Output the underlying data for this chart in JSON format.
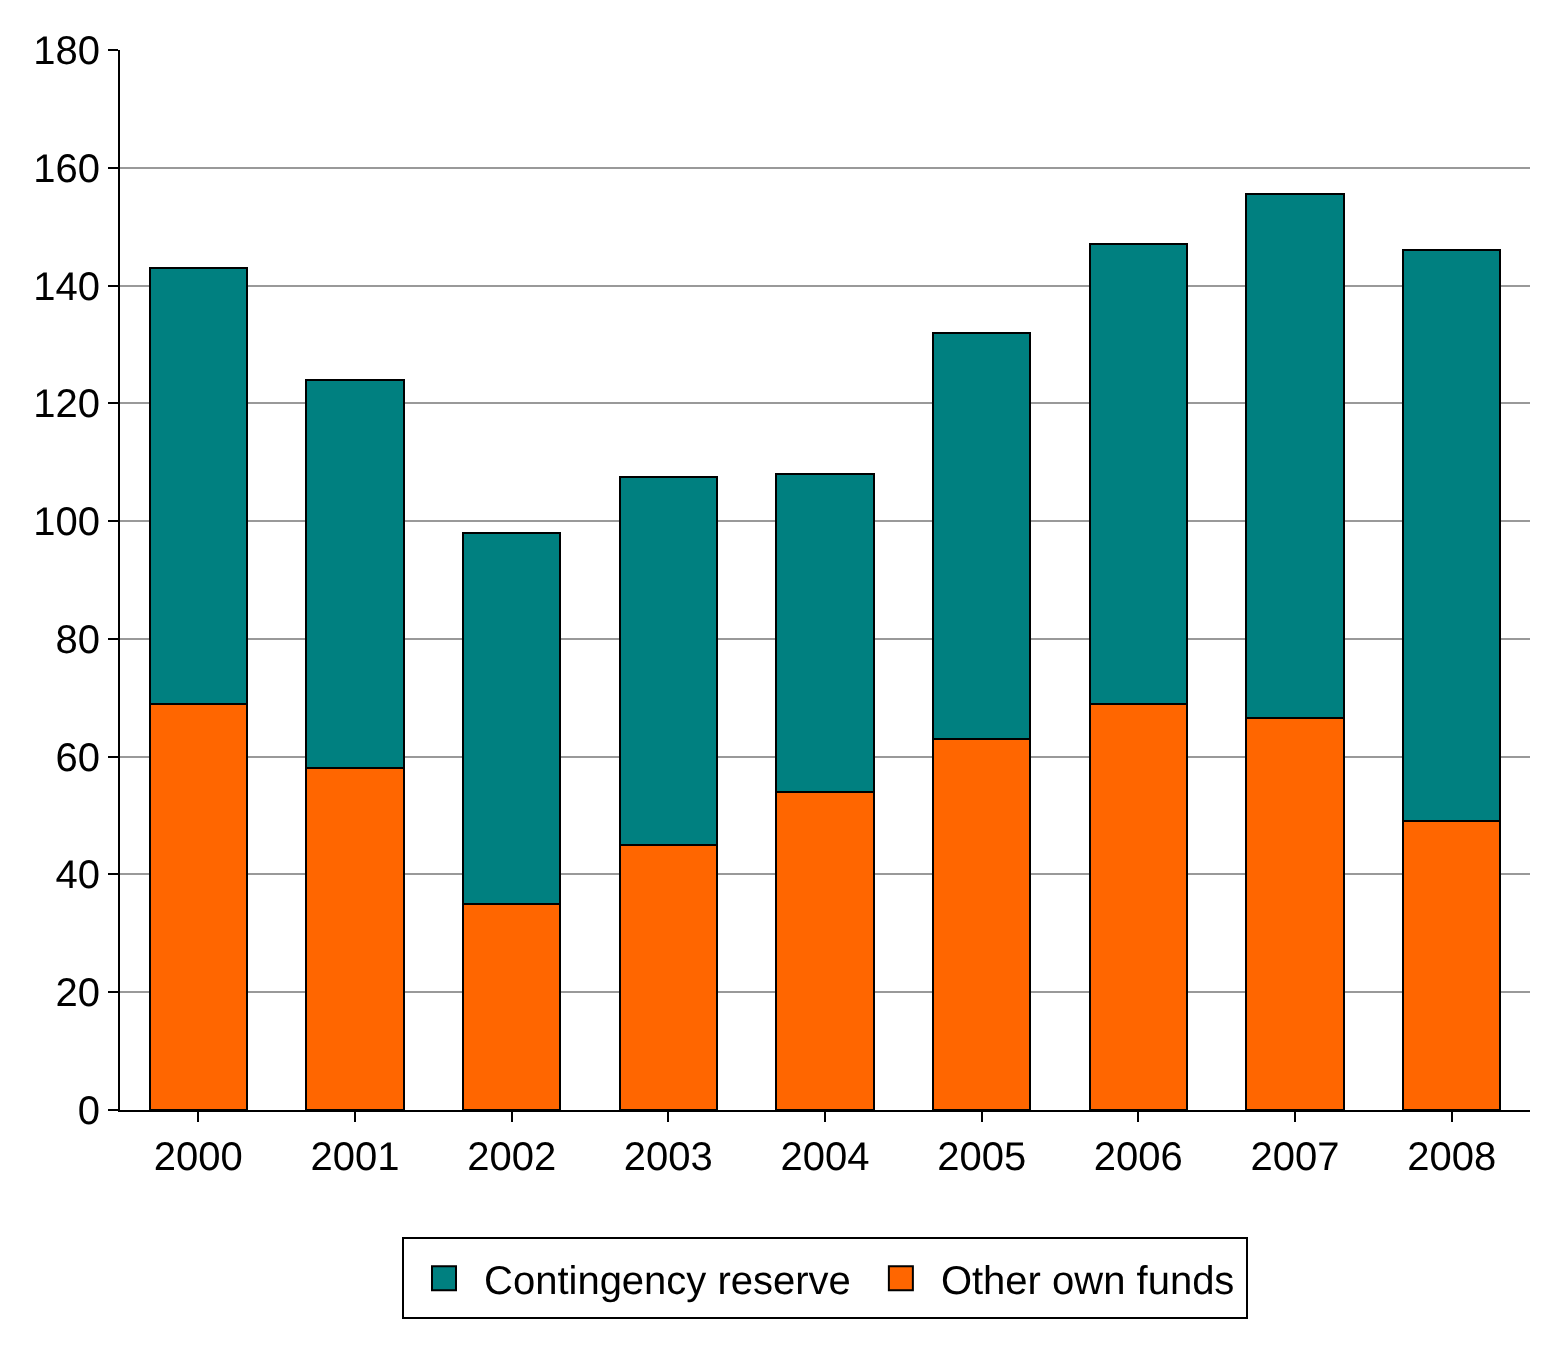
{
  "chart_data": {
    "type": "bar",
    "stacked": true,
    "categories": [
      "2000",
      "2001",
      "2002",
      "2003",
      "2004",
      "2005",
      "2006",
      "2007",
      "2008"
    ],
    "series": [
      {
        "name": "Other own funds",
        "color": "#ff6600",
        "values": [
          69,
          58,
          35,
          45,
          54,
          63,
          69,
          66.5,
          49
        ]
      },
      {
        "name": "Contingency reserve",
        "color": "#008080",
        "values": [
          74,
          66,
          63,
          62.5,
          54,
          69,
          78,
          89,
          97
        ]
      }
    ],
    "ylim": [
      0,
      180
    ],
    "yticks": [
      0,
      20,
      40,
      60,
      80,
      100,
      120,
      140,
      160,
      180
    ],
    "grid": "y",
    "legend": "bottom"
  }
}
